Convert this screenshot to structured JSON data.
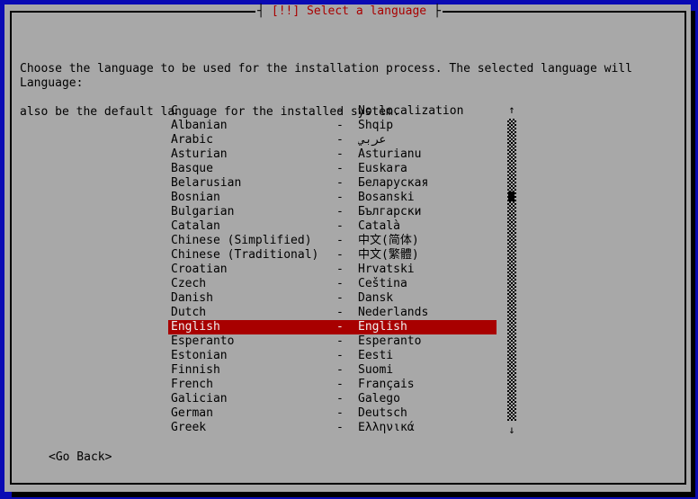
{
  "window": {
    "title": "[!!] Select a language",
    "title_left_tick": "┤",
    "title_right_tick": "├"
  },
  "dialog": {
    "description_lines": [
      "Choose the language to be used for the installation process. The selected language will",
      "also be the default language for the installed system."
    ],
    "field_label": "Language:",
    "go_back_label": "<Go Back>"
  },
  "language_list": {
    "separator": "-",
    "selected_index": 15,
    "items": [
      {
        "name": "C",
        "native": "No localization"
      },
      {
        "name": "Albanian",
        "native": "Shqip"
      },
      {
        "name": "Arabic",
        "native": "عربي"
      },
      {
        "name": "Asturian",
        "native": "Asturianu"
      },
      {
        "name": "Basque",
        "native": "Euskara"
      },
      {
        "name": "Belarusian",
        "native": "Беларуская"
      },
      {
        "name": "Bosnian",
        "native": "Bosanski"
      },
      {
        "name": "Bulgarian",
        "native": "Български"
      },
      {
        "name": "Catalan",
        "native": "Català"
      },
      {
        "name": "Chinese (Simplified)",
        "native": "中文(简体)"
      },
      {
        "name": "Chinese (Traditional)",
        "native": "中文(繁體)"
      },
      {
        "name": "Croatian",
        "native": "Hrvatski"
      },
      {
        "name": "Czech",
        "native": "Čeština"
      },
      {
        "name": "Danish",
        "native": "Dansk"
      },
      {
        "name": "Dutch",
        "native": "Nederlands"
      },
      {
        "name": "English",
        "native": "English"
      },
      {
        "name": "Esperanto",
        "native": "Esperanto"
      },
      {
        "name": "Estonian",
        "native": "Eesti"
      },
      {
        "name": "Finnish",
        "native": "Suomi"
      },
      {
        "name": "French",
        "native": "Français"
      },
      {
        "name": "Galician",
        "native": "Galego"
      },
      {
        "name": "German",
        "native": "Deutsch"
      },
      {
        "name": "Greek",
        "native": "Ελληνικά"
      }
    ],
    "scrollbar": {
      "up_arrow": "↑",
      "down_arrow": "↓"
    }
  },
  "colors": {
    "background_blue": "#0a0ab4",
    "dialog_gray": "#a8a8a8",
    "accent_red": "#a80000",
    "selected_text": "#f0f0f0"
  }
}
